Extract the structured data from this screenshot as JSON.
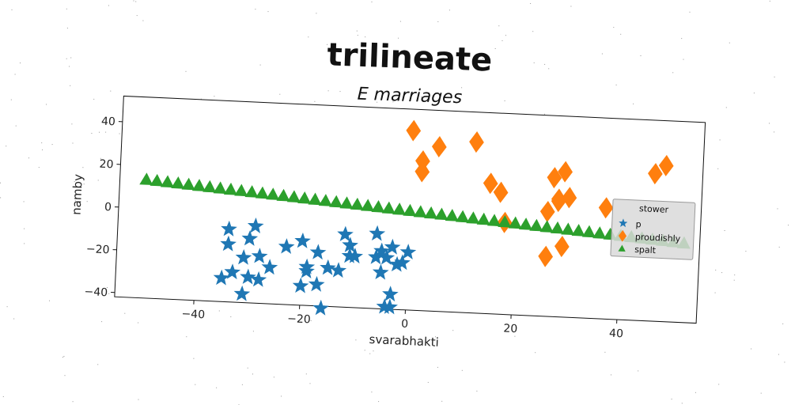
{
  "chart_data": {
    "type": "scatter",
    "suptitle": "trilineate",
    "title": "E marriages",
    "xlabel": "svarabhakti",
    "ylabel": "namby",
    "xlim": [
      -55,
      55
    ],
    "ylim": [
      -42,
      52
    ],
    "xticks": [
      -40,
      -20,
      0,
      20,
      40
    ],
    "xtick_labels": [
      "−40",
      "−20",
      "0",
      "20",
      "40"
    ],
    "yticks": [
      -40,
      -20,
      0,
      20,
      40
    ],
    "ytick_labels": [
      "−40",
      "−20",
      "0",
      "20",
      "40"
    ],
    "grid": false,
    "legend": {
      "title": "stower",
      "placement": "right"
    },
    "series": [
      {
        "name": "p",
        "marker": "star",
        "color": "#1f77b4",
        "points": [
          [
            -34,
            -8
          ],
          [
            -34,
            -15
          ],
          [
            -29,
            -6
          ],
          [
            -30,
            -12
          ],
          [
            -33,
            -28
          ],
          [
            -35,
            -31
          ],
          [
            -31,
            -21
          ],
          [
            -28,
            -20
          ],
          [
            -30,
            -30
          ],
          [
            -28,
            -31
          ],
          [
            -31,
            -38
          ],
          [
            -26,
            -25
          ],
          [
            -23,
            -15
          ],
          [
            -20,
            -12
          ],
          [
            -19,
            -26
          ],
          [
            -19,
            -24
          ],
          [
            -20,
            -33
          ],
          [
            -17,
            -17
          ],
          [
            -17,
            -32
          ],
          [
            -16,
            -43
          ],
          [
            -15,
            -24
          ],
          [
            -13,
            -25
          ],
          [
            -12,
            -8
          ],
          [
            -11,
            -13
          ],
          [
            -11,
            -18
          ],
          [
            -10,
            -18
          ],
          [
            -6,
            -7
          ],
          [
            -6,
            -18
          ],
          [
            -5,
            -15
          ],
          [
            -5,
            -25
          ],
          [
            -4,
            -18
          ],
          [
            -4,
            -41
          ],
          [
            -3,
            -35
          ],
          [
            -3,
            -41
          ],
          [
            -2,
            -21
          ],
          [
            -1,
            -20
          ],
          [
            0,
            -15
          ],
          [
            -3,
            -13
          ]
        ]
      },
      {
        "name": "proudishly",
        "marker": "diamond",
        "color": "#ff7f0e",
        "points": [
          [
            0,
            42
          ],
          [
            2,
            28
          ],
          [
            2,
            23
          ],
          [
            5,
            35
          ],
          [
            12,
            38
          ],
          [
            15,
            19
          ],
          [
            17,
            15
          ],
          [
            27,
            23
          ],
          [
            29,
            26
          ],
          [
            28,
            13
          ],
          [
            30,
            14
          ],
          [
            26,
            7
          ],
          [
            28,
            12
          ],
          [
            37,
            10
          ],
          [
            46,
            27
          ],
          [
            48,
            31
          ],
          [
            18,
            1
          ],
          [
            29,
            -9
          ],
          [
            26,
            -14
          ]
        ]
      },
      {
        "name": "spalt",
        "marker": "triangle",
        "color": "#2ca02c",
        "line": {
          "x_start": -50,
          "x_end": 52,
          "step": 2,
          "y_at_start": 13.5,
          "slope": -0.18
        }
      }
    ]
  }
}
